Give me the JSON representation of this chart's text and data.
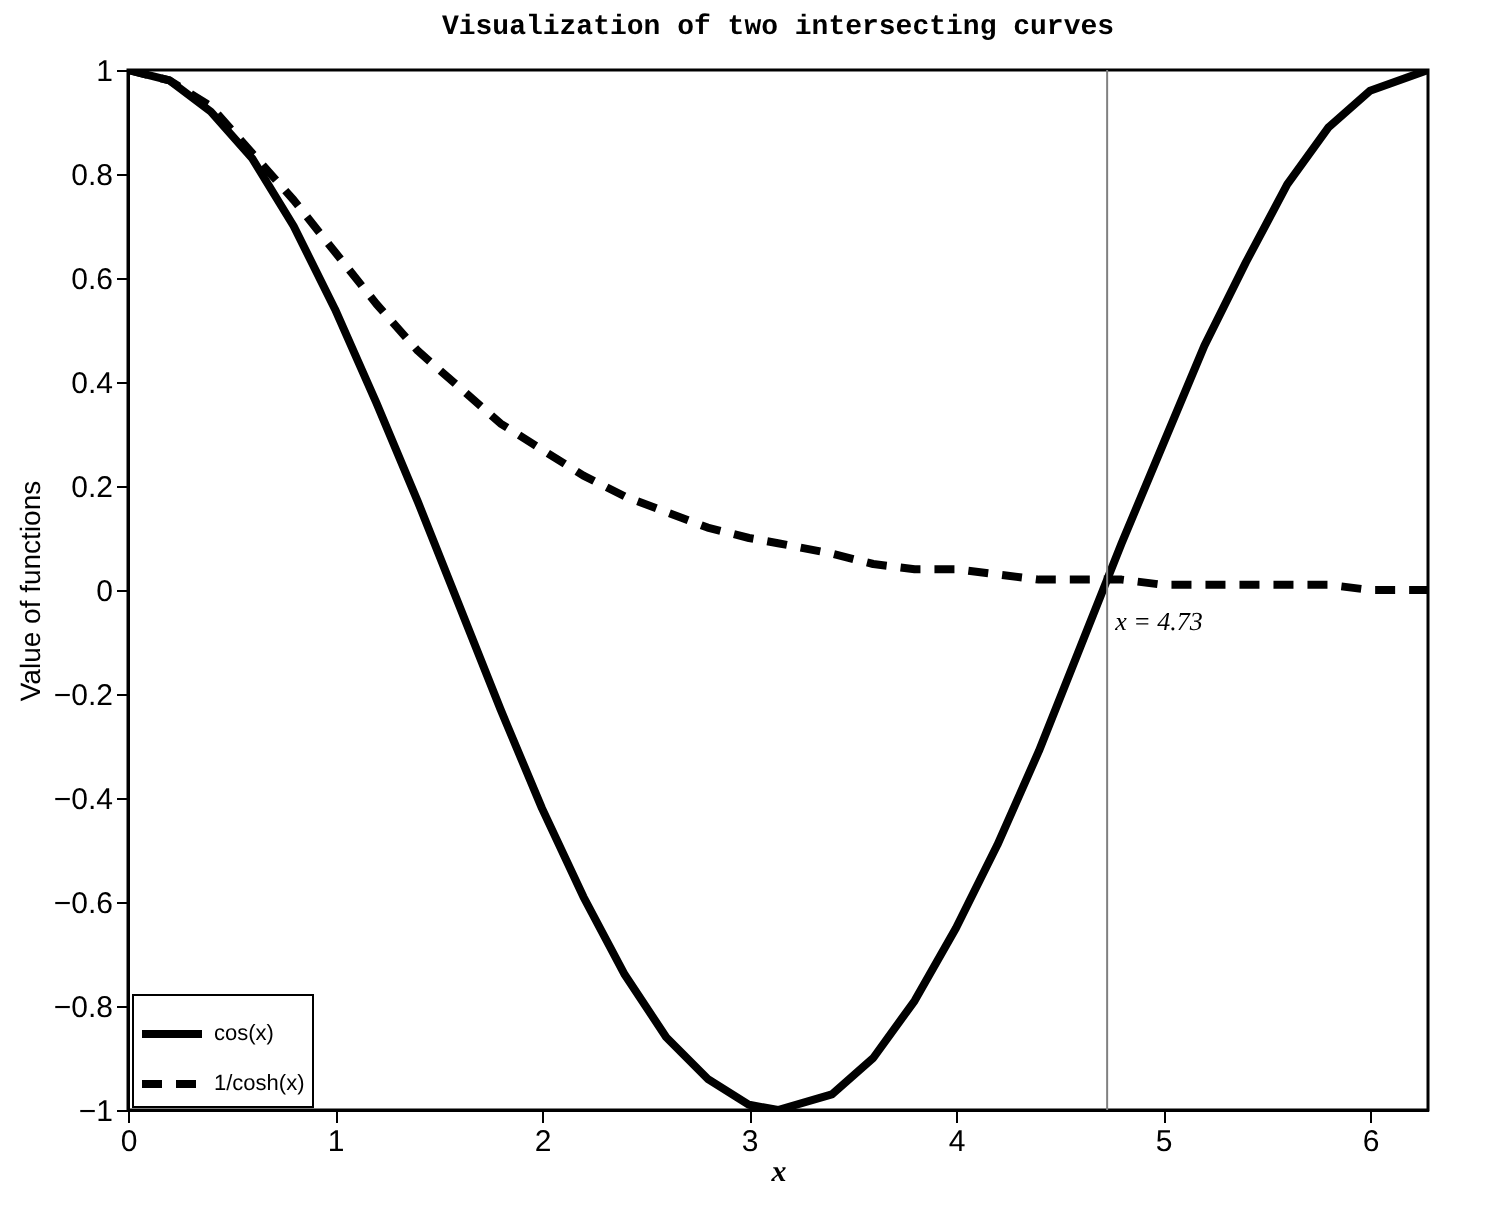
{
  "chart_data": {
    "type": "line",
    "title": "Visualization of two intersecting curves",
    "xlabel": "x",
    "ylabel": "Value of functions",
    "x": [
      0,
      0.2,
      0.4,
      0.6,
      0.8,
      1.0,
      1.2,
      1.4,
      1.6,
      1.8,
      2.0,
      2.2,
      2.4,
      2.6,
      2.8,
      3.0,
      3.14,
      3.4,
      3.6,
      3.8,
      4.0,
      4.2,
      4.4,
      4.6,
      4.8,
      5.0,
      5.2,
      5.4,
      5.6,
      5.8,
      6.0,
      6.28
    ],
    "series": [
      {
        "name": "cos(x)",
        "color": "#000000",
        "line_style": "solid",
        "values": [
          1,
          0.98,
          0.92,
          0.83,
          0.7,
          0.54,
          0.36,
          0.17,
          -0.03,
          -0.23,
          -0.42,
          -0.59,
          -0.74,
          -0.86,
          -0.94,
          -0.99,
          -1,
          -0.97,
          -0.9,
          -0.79,
          -0.65,
          -0.49,
          -0.31,
          -0.11,
          0.09,
          0.28,
          0.47,
          0.63,
          0.78,
          0.89,
          0.96,
          1
        ]
      },
      {
        "name": "1/cosh(x)",
        "color": "#000000",
        "line_style": "dashed",
        "values": [
          1,
          0.98,
          0.93,
          0.84,
          0.75,
          0.65,
          0.55,
          0.46,
          0.39,
          0.32,
          0.27,
          0.22,
          0.18,
          0.15,
          0.12,
          0.1,
          0.09,
          0.07,
          0.05,
          0.04,
          0.04,
          0.03,
          0.02,
          0.02,
          0.02,
          0.01,
          0.01,
          0.01,
          0.01,
          0.01,
          0,
          0
        ]
      }
    ],
    "xlim": [
      0,
      6.28
    ],
    "xticks": [
      0,
      1,
      2,
      3,
      4,
      5,
      6
    ],
    "ylim": [
      -1,
      1
    ],
    "yticks": [
      {
        "value": -1,
        "label": "−1"
      },
      {
        "value": -0.8,
        "label": "−0.8"
      },
      {
        "value": -0.6,
        "label": "−0.6"
      },
      {
        "value": -0.4,
        "label": "−0.4"
      },
      {
        "value": -0.2,
        "label": "−0.2"
      },
      0,
      0.2,
      0.4,
      0.6,
      0.8,
      1
    ],
    "ref_lines": [
      {
        "axis": "x",
        "value": 4.73,
        "label": "x = 4.73",
        "color": "#808080"
      }
    ],
    "legend": "bottom left",
    "grid": false,
    "marker": "none"
  }
}
